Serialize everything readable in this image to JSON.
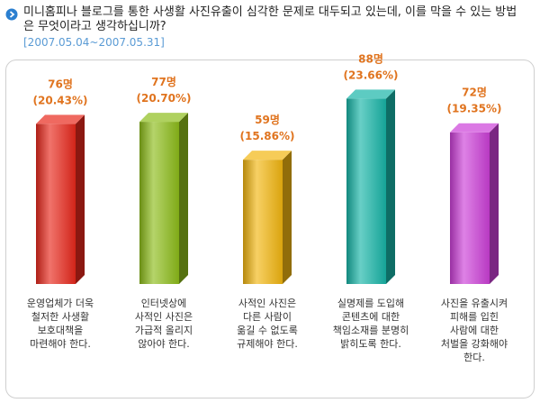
{
  "header": {
    "question": "미니홈피나 블로그를 통한 사생활 사진유출이 심각한 문제로 대두되고 있는데, 이를 막을 수 있는 방법은 무엇이라고 생각하십니까?",
    "period": "[2007.05.04~2007.05.31]",
    "bullet_icon": "chevron-right-circle-icon",
    "bullet_color": "#2b7fd0"
  },
  "chart_data": {
    "type": "bar",
    "categories": [
      "운영업체가 더욱\n철저한 사생활\n보호대책을\n마련해야 한다.",
      "인터넷상에\n사적인 사진은\n가급적 올리지\n않아야 한다.",
      "사적인 사진은\n다른 사람이\n옮길 수 없도록\n규제해야 한다.",
      "실명제를 도입해\n콘텐츠에  대한\n책임소재를 분명히\n밝히도록 한다.",
      "사진을 유출시켜\n피해를 입힌\n사람에 대한\n처벌을 강화해야\n한다."
    ],
    "values": [
      76,
      77,
      59,
      88,
      72
    ],
    "count_labels": [
      "76명",
      "77명",
      "59명",
      "88명",
      "72명"
    ],
    "percent_labels": [
      "(20.43%)",
      "(20.70%)",
      "(15.86%)",
      "(23.66%)",
      "(19.35%)"
    ],
    "colors": [
      "#e8281c",
      "#8dbd1a",
      "#f2b610",
      "#17b5a8",
      "#cc3fd8"
    ],
    "ylim": [
      0,
      95
    ]
  }
}
